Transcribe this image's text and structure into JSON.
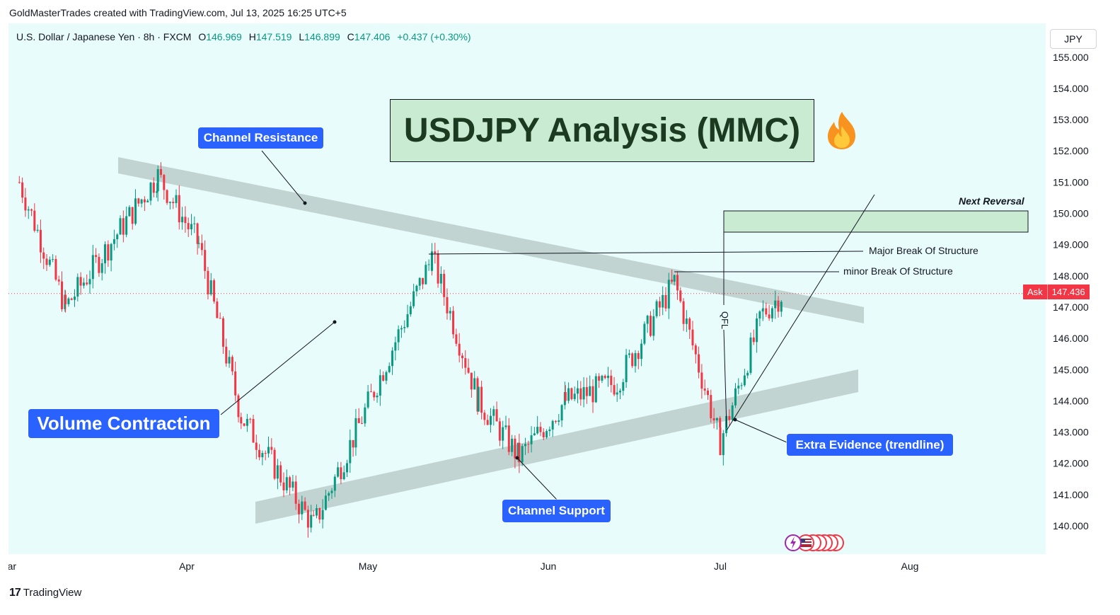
{
  "header": {
    "attribution": "GoldMasterTrades created with TradingView.com, Jul 13, 2025 16:25 UTC+5"
  },
  "legend": {
    "symbol": "U.S. Dollar / Japanese Yen · 8h · FXCM",
    "open_label": "O",
    "open": "146.969",
    "high_label": "H",
    "high": "147.519",
    "low_label": "L",
    "low": "146.899",
    "close_label": "C",
    "close": "147.406",
    "change": "+0.437 (+0.30%)"
  },
  "currency_button": "JPY",
  "price_tag": {
    "label": "Ask",
    "value": "147.436"
  },
  "title": "USDJPY Analysis (MMC)",
  "annotations": {
    "channel_resistance": "Channel Resistance",
    "channel_support": "Channel Support",
    "volume_contraction": "Volume Contraction",
    "extra_evidence": "Extra Evidence (trendline)",
    "next_reversal": "Next Reversal",
    "major_bos": "Major Break Of Structure",
    "minor_bos": "minor Break Of Structure",
    "qfl": "QFL"
  },
  "footer": {
    "brand": "TradingView"
  },
  "colors": {
    "background": "#e9fcfc",
    "up": "#089981",
    "down": "#f23645",
    "channel": "#b6c9c6",
    "reversal_zone": "#c8ebd2",
    "label_blue": "#2962ff"
  },
  "chart_data": {
    "type": "candlestick",
    "y_axis_ticks": [
      "155.000",
      "154.000",
      "153.000",
      "152.000",
      "151.000",
      "150.000",
      "149.000",
      "148.000",
      "147.000",
      "146.000",
      "145.000",
      "144.000",
      "143.000",
      "142.000",
      "141.000",
      "140.000"
    ],
    "x_axis_ticks": [
      "Mar",
      "Apr",
      "May",
      "Jun",
      "Jul",
      "Aug"
    ],
    "ylim": [
      139.5,
      155.5
    ],
    "key_points": [
      {
        "date": "Mar 03",
        "price": 151.0
      },
      {
        "date": "Mar 11",
        "price": 147.0
      },
      {
        "date": "Mar 27",
        "price": 151.2
      },
      {
        "date": "Apr 03",
        "price": 149.0
      },
      {
        "date": "Apr 10",
        "price": 143.5
      },
      {
        "date": "Apr 22",
        "price": 140.0
      },
      {
        "date": "Apr 29",
        "price": 143.0
      },
      {
        "date": "May 12",
        "price": 148.6
      },
      {
        "date": "May 20",
        "price": 144.0
      },
      {
        "date": "May 27",
        "price": 142.2
      },
      {
        "date": "Jun 04",
        "price": 144.0
      },
      {
        "date": "Jun 13",
        "price": 144.6
      },
      {
        "date": "Jun 23",
        "price": 147.8
      },
      {
        "date": "Jul 01",
        "price": 142.7
      },
      {
        "date": "Jul 08",
        "price": 146.8
      },
      {
        "date": "Jul 11",
        "price": 147.4
      }
    ]
  }
}
